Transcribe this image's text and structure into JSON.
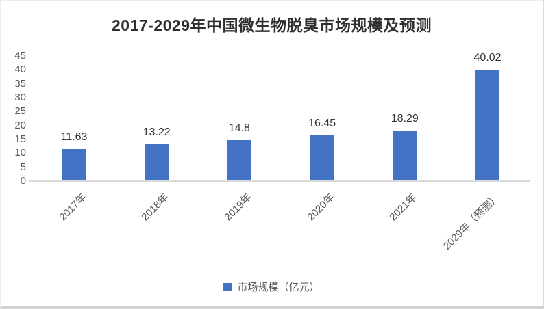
{
  "chart_data": {
    "type": "bar",
    "title": "2017-2029年中国微生物脱臭市场规模及预测",
    "categories": [
      "2017年",
      "2018年",
      "2019年",
      "2020年",
      "2021年",
      "2029年（预测）"
    ],
    "values": [
      11.63,
      13.22,
      14.8,
      16.45,
      18.29,
      40.02
    ],
    "value_labels": [
      "11.63",
      "13.22",
      "14.8",
      "16.45",
      "18.29",
      "40.02"
    ],
    "series_name": "市场规模（亿元）",
    "xlabel": "",
    "ylabel": "",
    "ylim": [
      0,
      45
    ],
    "yticks": [
      0,
      5,
      10,
      15,
      20,
      25,
      30,
      35,
      40,
      45
    ],
    "grid": false,
    "legend_position": "bottom",
    "colors": {
      "bar": "#4472C4",
      "axis_text": "#595959",
      "value_label": "#333333",
      "axis_line": "#d9d9d9",
      "title_text": "#2f2f2f"
    }
  }
}
